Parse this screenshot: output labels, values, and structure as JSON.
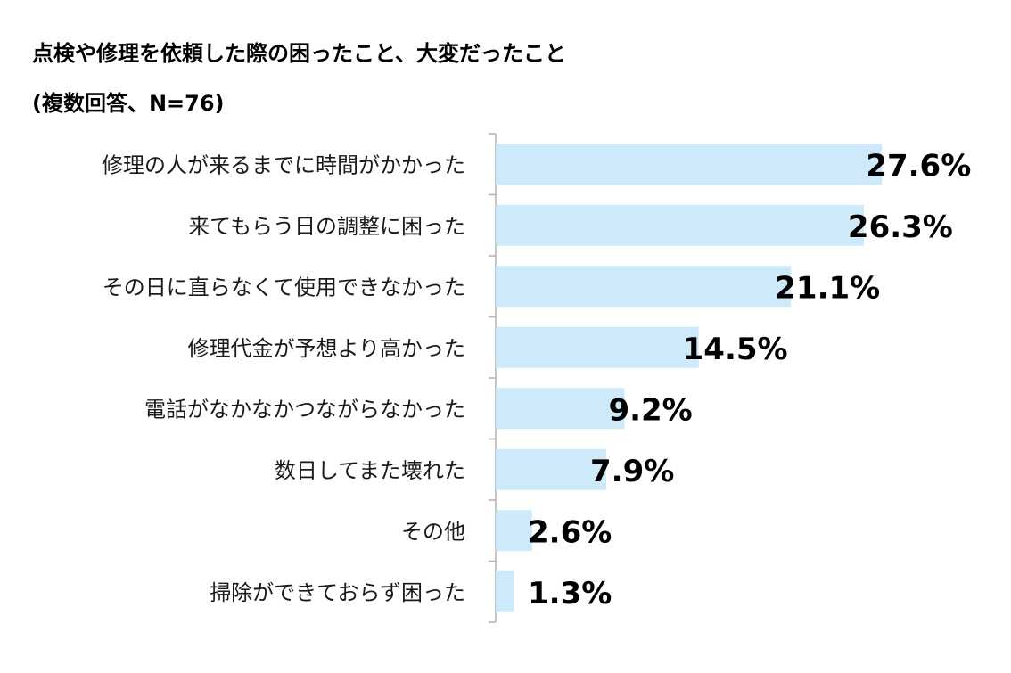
{
  "chart_data": {
    "type": "bar",
    "orientation": "horizontal",
    "title": "点検や修理を依頼した際の困ったこと、大変だったこと",
    "subtitle": "(複数回答、N=76)",
    "categories": [
      "修理の人が来るまでに時間がかかった",
      "来てもらう日の調整に困った",
      "その日に直らなくて使用できなかった",
      "修理代金が予想より高かった",
      "電話がなかなかつながらなかった",
      "数日してまた壊れた",
      "その他",
      "掃除ができておらず困った"
    ],
    "values": [
      27.6,
      26.3,
      21.1,
      14.5,
      9.2,
      7.9,
      2.6,
      1.3
    ],
    "value_labels": [
      "27.6%",
      "26.3%",
      "21.1%",
      "14.5%",
      "9.2%",
      "7.9%",
      "2.6%",
      "1.3%"
    ],
    "xlim": [
      0,
      35
    ],
    "grid": false,
    "bar_color": "#cde9fa",
    "axis_color": "#b0b0b0"
  }
}
